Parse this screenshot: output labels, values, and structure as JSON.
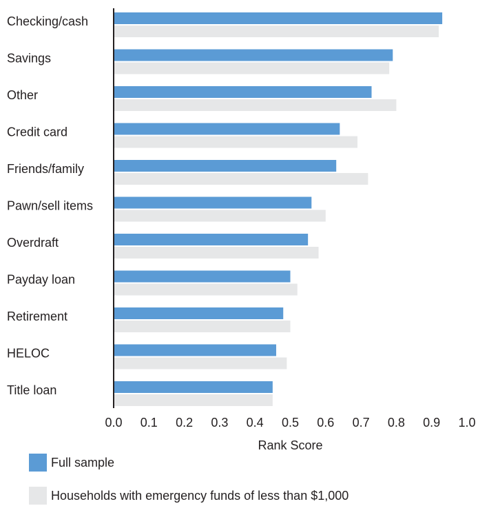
{
  "chart_data": {
    "type": "bar",
    "orientation": "horizontal",
    "categories": [
      "Checking/cash",
      "Savings",
      "Other",
      "Credit card",
      "Friends/family",
      "Pawn/sell items",
      "Overdraft",
      "Payday loan",
      "Retirement",
      "HELOC",
      "Title loan"
    ],
    "series": [
      {
        "name": "Full sample",
        "color": "#5b9bd5",
        "values": [
          0.93,
          0.79,
          0.73,
          0.64,
          0.63,
          0.56,
          0.55,
          0.5,
          0.48,
          0.46,
          0.45
        ]
      },
      {
        "name": "Households with emergency funds of less than $1,000",
        "color": "#e6e7e8",
        "values": [
          0.92,
          0.78,
          0.8,
          0.69,
          0.72,
          0.6,
          0.58,
          0.52,
          0.5,
          0.49,
          0.45
        ]
      }
    ],
    "xlabel": "Rank Score",
    "ylabel": "",
    "xlim": [
      0.0,
      1.0
    ],
    "x_ticks": [
      "0.0",
      "0.1",
      "0.2",
      "0.3",
      "0.4",
      "0.5",
      "0.6",
      "0.7",
      "0.8",
      "0.9",
      "1.0"
    ],
    "grid": false,
    "legend_position": "bottom-left"
  }
}
